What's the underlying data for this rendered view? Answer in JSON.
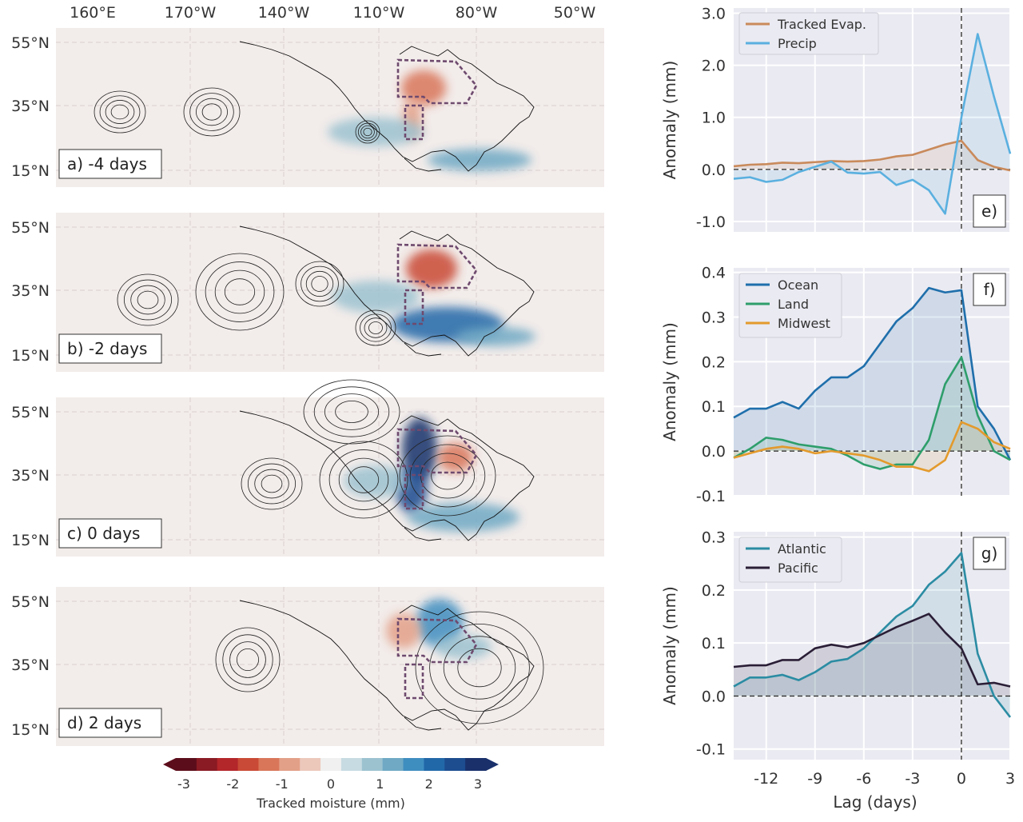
{
  "lon_ticks": [
    "160°E",
    "170°W",
    "140°W",
    "110°W",
    "80°W",
    "50°W"
  ],
  "lat_ticks": [
    "55°N",
    "35°N",
    "15°N"
  ],
  "panels": [
    {
      "label": "a) -4 days"
    },
    {
      "label": "b) -2 days"
    },
    {
      "label": "c) 0 days"
    },
    {
      "label": "d) 2 days"
    }
  ],
  "colorbar": {
    "ticks": [
      "-3",
      "-2",
      "-1",
      "0",
      "1",
      "2",
      "3"
    ],
    "label": "Tracked moisture (mm)",
    "colors": [
      "#5c0d1b",
      "#8a1a24",
      "#b3262a",
      "#c94a36",
      "#d9765a",
      "#e3a088",
      "#ecc8bb",
      "#f0f0f0",
      "#c7dbe2",
      "#9cc2d0",
      "#6fa9c4",
      "#3f8ec0",
      "#2168a8",
      "#1d4c8f",
      "#19306b"
    ]
  },
  "chart_data": [
    {
      "type": "line",
      "panel_label": "e)",
      "ylabel": "Anomaly (mm)",
      "ylim": [
        -1.2,
        3.1
      ],
      "yticks": [
        "3.0",
        "2.0",
        "1.0",
        "0.0",
        "-1.0"
      ],
      "ytick_values": [
        3,
        2,
        1,
        0,
        -1
      ],
      "x": [
        -14,
        -13,
        -12,
        -11,
        -10,
        -9,
        -8,
        -7,
        -6,
        -5,
        -4,
        -3,
        -2,
        -1,
        0,
        1,
        2,
        3
      ],
      "series": [
        {
          "name": "Tracked Evap.",
          "color": "#c98a5b",
          "values": [
            0.06,
            0.09,
            0.1,
            0.13,
            0.12,
            0.14,
            0.16,
            0.15,
            0.16,
            0.19,
            0.25,
            0.28,
            0.38,
            0.48,
            0.55,
            0.18,
            0.05,
            -0.02
          ]
        },
        {
          "name": "Precip",
          "color": "#5ab0df",
          "values": [
            -0.18,
            -0.15,
            -0.24,
            -0.2,
            -0.05,
            0.05,
            0.15,
            -0.06,
            -0.08,
            -0.05,
            -0.3,
            -0.2,
            -0.4,
            -0.85,
            1.0,
            2.6,
            1.4,
            0.3
          ]
        }
      ]
    },
    {
      "type": "line",
      "panel_label": "f)",
      "ylabel": "Anomaly (mm)",
      "ylim": [
        -0.1,
        0.41
      ],
      "yticks": [
        "0.4",
        "0.3",
        "0.2",
        "0.1",
        "0.0",
        "-0.1"
      ],
      "ytick_values": [
        0.4,
        0.3,
        0.2,
        0.1,
        0.0,
        -0.1
      ],
      "x": [
        -14,
        -13,
        -12,
        -11,
        -10,
        -9,
        -8,
        -7,
        -6,
        -5,
        -4,
        -3,
        -2,
        -1,
        0,
        1,
        2,
        3
      ],
      "series": [
        {
          "name": "Ocean",
          "color": "#1f6fab",
          "values": [
            0.075,
            0.095,
            0.095,
            0.11,
            0.095,
            0.135,
            0.165,
            0.165,
            0.19,
            0.24,
            0.29,
            0.32,
            0.365,
            0.355,
            0.36,
            0.1,
            0.05,
            -0.02
          ]
        },
        {
          "name": "Land",
          "color": "#2e9e6b",
          "values": [
            -0.015,
            0.005,
            0.03,
            0.025,
            0.015,
            0.01,
            0.005,
            -0.01,
            -0.03,
            -0.04,
            -0.03,
            -0.03,
            0.025,
            0.15,
            0.21,
            0.08,
            0.0,
            -0.02
          ]
        },
        {
          "name": "Midwest",
          "color": "#e39a2c",
          "values": [
            -0.015,
            -0.005,
            0.005,
            0.01,
            0.005,
            -0.005,
            0.0,
            -0.005,
            -0.01,
            -0.02,
            -0.035,
            -0.035,
            -0.045,
            -0.02,
            0.065,
            0.05,
            0.02,
            0.005
          ]
        }
      ]
    },
    {
      "type": "line",
      "panel_label": "g)",
      "ylabel": "Anomaly (mm)",
      "xlabel": "Lag (days)",
      "ylim": [
        -0.12,
        0.31
      ],
      "yticks": [
        "0.3",
        "0.2",
        "0.1",
        "0.0",
        "-0.1"
      ],
      "ytick_values": [
        0.3,
        0.2,
        0.1,
        0.0,
        -0.1
      ],
      "x": [
        -14,
        -13,
        -12,
        -11,
        -10,
        -9,
        -8,
        -7,
        -6,
        -5,
        -4,
        -3,
        -2,
        -1,
        0,
        1,
        2,
        3
      ],
      "xticks": [
        "-12",
        "-9",
        "-6",
        "-3",
        "0",
        "3"
      ],
      "xtick_values": [
        -12,
        -9,
        -6,
        -3,
        0,
        3
      ],
      "series": [
        {
          "name": "Atlantic",
          "color": "#2b8ca3",
          "values": [
            0.018,
            0.035,
            0.035,
            0.04,
            0.03,
            0.045,
            0.065,
            0.07,
            0.09,
            0.12,
            0.15,
            0.17,
            0.21,
            0.235,
            0.27,
            0.08,
            0.0,
            -0.04
          ]
        },
        {
          "name": "Pacific",
          "color": "#2a1e36",
          "values": [
            0.055,
            0.058,
            0.058,
            0.068,
            0.068,
            0.09,
            0.097,
            0.092,
            0.1,
            0.115,
            0.13,
            0.142,
            0.155,
            0.12,
            0.09,
            0.022,
            0.025,
            0.018
          ]
        }
      ]
    }
  ]
}
